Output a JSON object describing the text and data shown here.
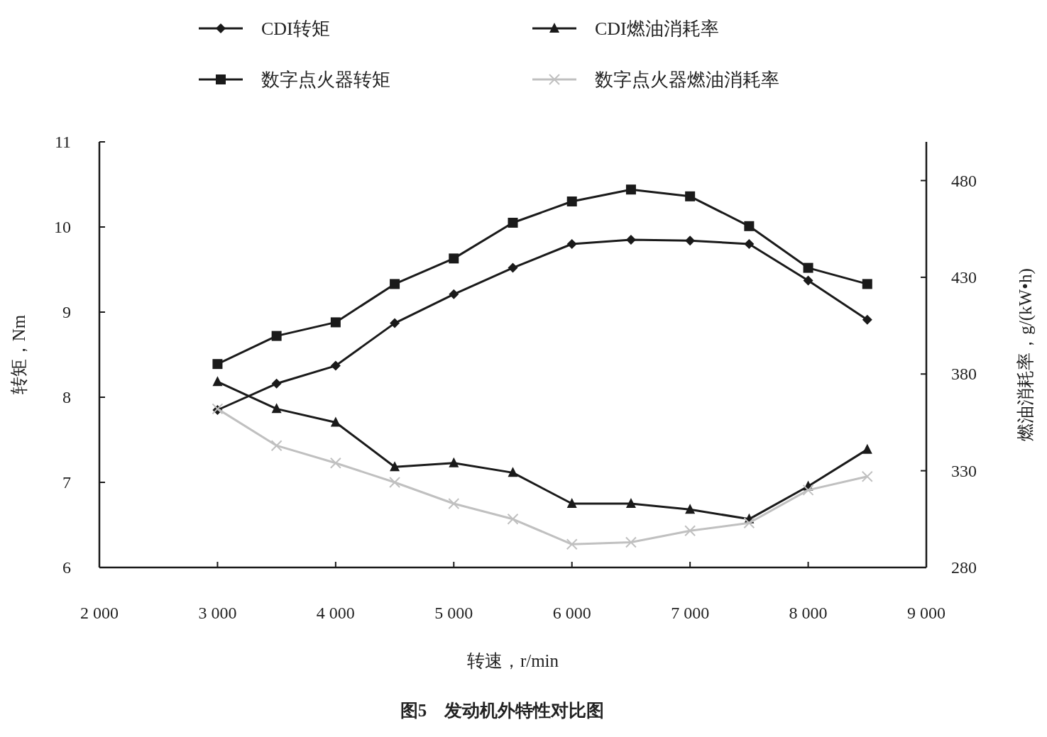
{
  "chart_data": {
    "type": "line",
    "title": "图5　发动机外特性对比图",
    "xlabel": "转速，r/min",
    "ylabel": "转矩，Nm",
    "y2label": "燃油消耗率，g/(kW•h)",
    "x": [
      3000,
      3500,
      4000,
      4500,
      5000,
      5500,
      6000,
      6500,
      7000,
      7500,
      8000,
      8500
    ],
    "xlim": [
      2000,
      9000
    ],
    "xticks": [
      {
        "value": 2000,
        "label": "2 000"
      },
      {
        "value": 3000,
        "label": "3 000"
      },
      {
        "value": 4000,
        "label": "4 000"
      },
      {
        "value": 5000,
        "label": "5 000"
      },
      {
        "value": 6000,
        "label": "6 000"
      },
      {
        "value": 7000,
        "label": "7 000"
      },
      {
        "value": 8000,
        "label": "8 000"
      },
      {
        "value": 9000,
        "label": "9 000"
      }
    ],
    "ylim": [
      6,
      11
    ],
    "yticks": [
      6,
      7,
      8,
      9,
      10,
      11
    ],
    "y2lim": [
      280,
      500
    ],
    "y2ticks": [
      280,
      330,
      380,
      430,
      480
    ],
    "grid": false,
    "legend": "top",
    "line_style": "solid",
    "series": [
      {
        "name": "CDI转矩",
        "color": "#1a1a1a",
        "marker": "diamond",
        "values": [
          7.85,
          8.16,
          8.37,
          8.87,
          9.21,
          9.52,
          9.8,
          9.85,
          9.84,
          9.8,
          9.37,
          8.91
        ]
      },
      {
        "name": "CDI燃油消耗率",
        "color": "#1a1a1a",
        "marker": "triangle",
        "axis": "y2",
        "values": [
          376,
          362,
          355,
          332,
          334,
          329,
          313,
          313,
          310,
          305,
          322,
          341
        ]
      },
      {
        "name": "数字点火器转矩",
        "color": "#1a1a1a",
        "marker": "square",
        "values": [
          8.39,
          8.72,
          8.88,
          9.33,
          9.63,
          10.05,
          10.3,
          10.44,
          10.36,
          10.01,
          9.52,
          9.33
        ]
      },
      {
        "name": "数字点火器燃油消耗率",
        "color": "#c0c0c0",
        "marker": "cross",
        "axis": "y2",
        "values": [
          362,
          343,
          334,
          324,
          313,
          305,
          292,
          293,
          299,
          303,
          320,
          327
        ]
      }
    ]
  }
}
